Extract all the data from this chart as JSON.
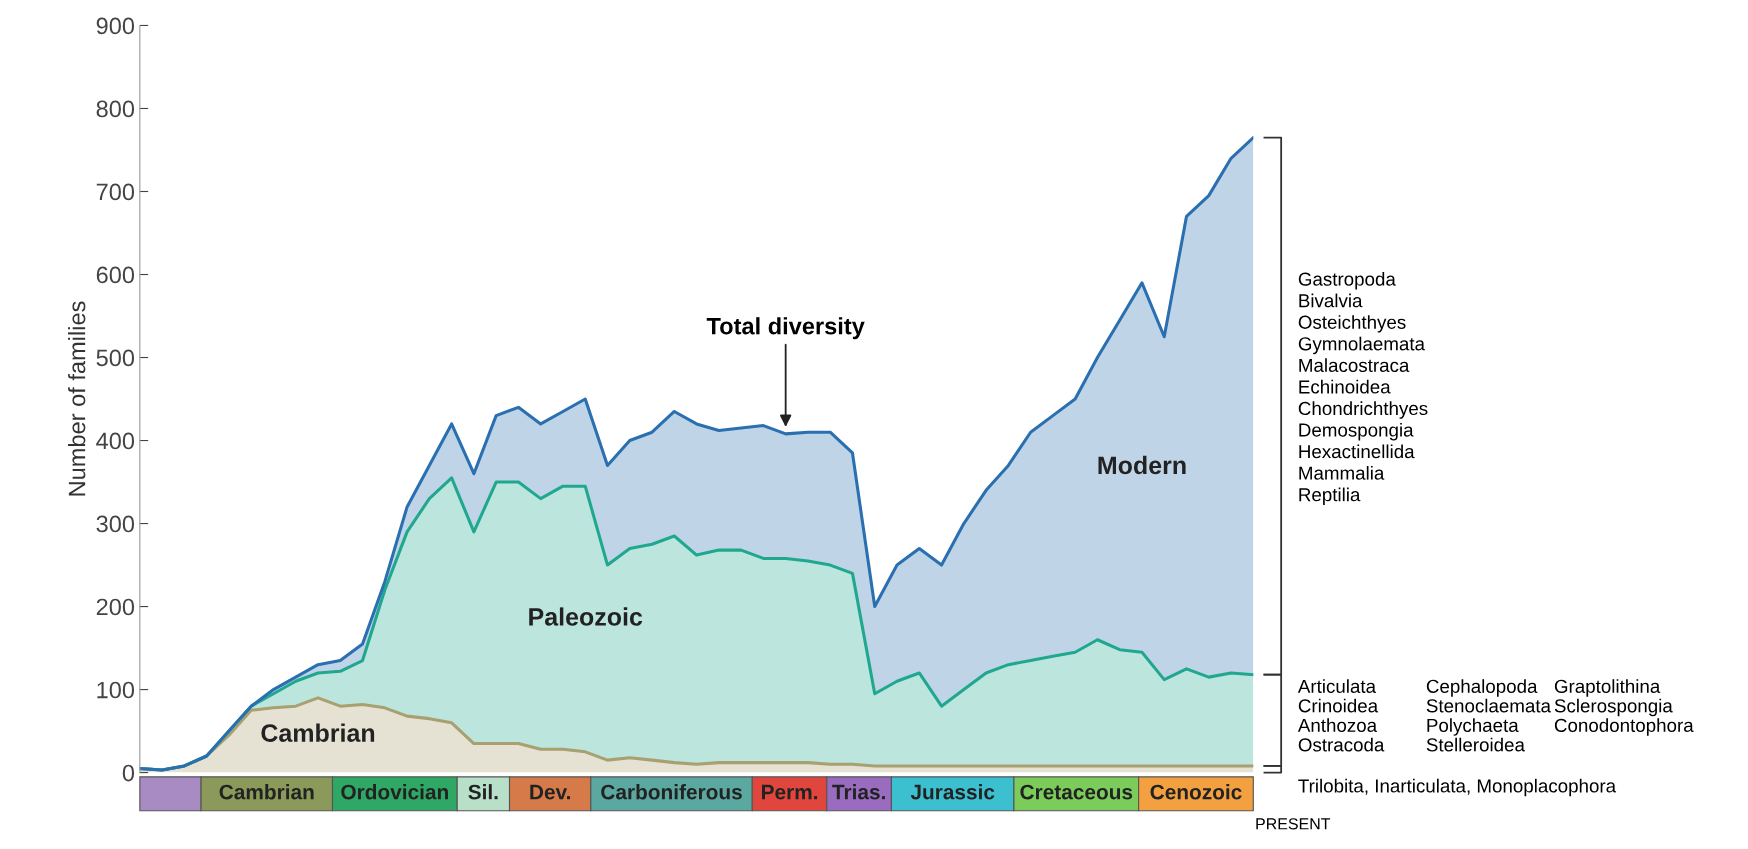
{
  "chart_data": {
    "type": "area",
    "stacked": true,
    "ylabel": "Number of families",
    "categories": [
      null,
      null,
      null,
      null,
      null,
      null,
      null,
      null,
      null,
      null,
      null,
      null,
      null,
      null,
      null,
      null,
      null,
      null,
      null,
      null,
      null,
      null,
      null,
      null,
      null,
      null,
      null,
      null,
      null,
      null,
      null,
      null,
      null,
      null,
      null,
      null,
      null,
      null,
      null,
      null,
      null,
      null,
      null,
      null,
      null,
      null,
      null,
      null,
      null,
      null,
      null
    ],
    "series": [
      {
        "name": "Cambrian",
        "color": "#a8a070",
        "values": [
          5,
          3,
          8,
          20,
          45,
          75,
          78,
          80,
          90,
          80,
          82,
          78,
          68,
          65,
          60,
          35,
          35,
          35,
          28,
          28,
          25,
          15,
          18,
          15,
          12,
          10,
          12,
          12,
          12,
          12,
          12,
          10,
          10,
          8,
          8,
          8,
          8,
          8,
          8,
          8,
          8,
          8,
          8,
          8,
          8,
          8,
          8,
          8,
          8,
          8,
          8
        ]
      },
      {
        "name": "Paleozoic",
        "color": "#20a88f",
        "values": [
          0,
          0,
          0,
          0,
          5,
          5,
          17,
          30,
          30,
          42,
          53,
          142,
          222,
          265,
          295,
          255,
          315,
          315,
          302,
          317,
          320,
          235,
          252,
          260,
          273,
          252,
          256,
          256,
          246,
          246,
          243,
          240,
          230,
          87,
          102,
          112,
          72,
          92,
          112,
          122,
          127,
          132,
          137,
          152,
          140,
          137,
          104,
          117,
          107,
          112,
          110
        ]
      },
      {
        "name": "Modern",
        "color": "#2a6fb0",
        "values": [
          0,
          0,
          0,
          0,
          0,
          0,
          5,
          5,
          10,
          13,
          20,
          10,
          30,
          40,
          65,
          70,
          80,
          90,
          90,
          90,
          105,
          120,
          130,
          135,
          150,
          158,
          144,
          147,
          160,
          150,
          155,
          160,
          145,
          105,
          140,
          150,
          170,
          200,
          220,
          240,
          275,
          290,
          305,
          340,
          397,
          445,
          413,
          545,
          580,
          620,
          647
        ]
      }
    ],
    "ylim": [
      0,
      900
    ],
    "yticks": [
      0,
      100,
      200,
      300,
      400,
      500,
      600,
      700,
      800,
      900
    ],
    "tick_labels": "y",
    "annotations": [
      "Total diversity",
      "Gastropoda\nBivalvia\nOsteichthyes\nGymnolaemata\nMalacostraca\nEchinoidea\nChondrichthyes\nDemospongia\nHexactinellida\nMammalia\nReptilia",
      "Articulata\nCrinoidea\nAnthozoa\nOstracoda",
      "Cephalopoda\nStenoclaemata\nPolychaeta\nStelleroidea",
      "Graptolithina\nSclerospongia\nConodontophora",
      "Trilobita, Inarticulata, Monoplacophora",
      "PRESENT",
      "Cambrian",
      "Ordovician",
      "Sil.",
      "Dev.",
      "Carboniferous",
      "Perm.",
      "Trias.",
      "Jurassic",
      "Cretaceous",
      "Cenozoic"
    ]
  }
}
